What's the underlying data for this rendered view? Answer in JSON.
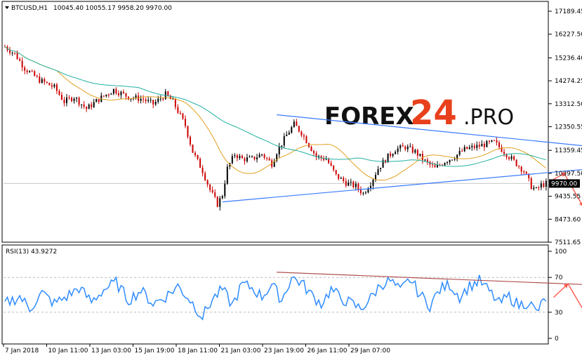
{
  "header": {
    "symbol": "BTCUSD,H1",
    "ohlc": "10045.40 10055.17 9958.20 9970.00",
    "rsi_label": "RSI(13) 43.9272"
  },
  "logo": {
    "forex": "FOREX",
    "num": "24",
    "pro": ".PRO"
  },
  "colors": {
    "bull": "#000000",
    "bear": "#cc0000",
    "ma_fast": "#e0a020",
    "ma_slow": "#20b0a0",
    "trend": "#3a7bff",
    "arrow": "#ff5a50",
    "rsi": "#2f8cff",
    "rsi_trend": "#b05050"
  },
  "chart_data": [
    {
      "type": "line",
      "name": "price",
      "y_ticks": [
        "17189.45",
        "16227.50",
        "15236.40",
        "14274.25",
        "13312.50",
        "12350.55",
        "11359.45",
        "10397.50",
        "9435.55",
        "8473.60",
        "7511.65"
      ],
      "ylim": [
        7511.65,
        17189.45
      ],
      "current_price": "9970.00",
      "x_ticks": [
        "7 Jan 2018",
        "10 Jan 11:00",
        "13 Jan 03:00",
        "15 Jan 19:00",
        "18 Jan 11:00",
        "21 Jan 03:00",
        "23 Jan 19:00",
        "26 Jan 11:00",
        "29 Jan 07:00"
      ],
      "anchors": [
        [
          0,
          15700
        ],
        [
          4,
          15400
        ],
        [
          8,
          14800
        ],
        [
          14,
          14300
        ],
        [
          20,
          14000
        ],
        [
          24,
          13400
        ],
        [
          28,
          13600
        ],
        [
          33,
          13100
        ],
        [
          38,
          13500
        ],
        [
          44,
          13900
        ],
        [
          50,
          13600
        ],
        [
          56,
          13500
        ],
        [
          60,
          13300
        ],
        [
          65,
          13700
        ],
        [
          68,
          13400
        ],
        [
          73,
          12400
        ],
        [
          76,
          11300
        ],
        [
          80,
          10500
        ],
        [
          83,
          9700
        ],
        [
          86,
          9100
        ],
        [
          88,
          9500
        ],
        [
          90,
          10600
        ],
        [
          93,
          11200
        ],
        [
          96,
          11000
        ],
        [
          100,
          11000
        ],
        [
          104,
          11200
        ],
        [
          108,
          10800
        ],
        [
          110,
          11300
        ],
        [
          114,
          12000
        ],
        [
          117,
          12450
        ],
        [
          120,
          12100
        ],
        [
          123,
          11600
        ],
        [
          126,
          11100
        ],
        [
          130,
          11000
        ],
        [
          134,
          10300
        ],
        [
          138,
          10000
        ],
        [
          142,
          9850
        ],
        [
          145,
          9550
        ],
        [
          148,
          10000
        ],
        [
          151,
          10600
        ],
        [
          155,
          11100
        ],
        [
          158,
          11400
        ],
        [
          162,
          11500
        ],
        [
          166,
          11300
        ],
        [
          170,
          10900
        ],
        [
          174,
          10600
        ],
        [
          178,
          10900
        ],
        [
          182,
          11100
        ],
        [
          186,
          11400
        ],
        [
          190,
          11500
        ],
        [
          194,
          11600
        ],
        [
          198,
          11700
        ],
        [
          201,
          11400
        ],
        [
          204,
          11100
        ],
        [
          207,
          10800
        ],
        [
          210,
          10500
        ],
        [
          213,
          9850
        ],
        [
          215,
          9700
        ],
        [
          217,
          9900
        ],
        [
          219,
          9970
        ]
      ],
      "trend_upper": [
        [
          110,
          12850
        ],
        [
          258,
          11300
        ]
      ],
      "trend_lower": [
        [
          88,
          9200
        ],
        [
          262,
          10820
        ]
      ],
      "arrow_up": [
        [
          222,
          10150
        ],
        [
          227,
          10420
        ]
      ],
      "arrow_down": [
        [
          226,
          10450
        ],
        [
          234,
          9000
        ]
      ]
    },
    {
      "type": "line",
      "name": "RSI",
      "y_ticks": [
        "100",
        "70",
        "30",
        "0"
      ],
      "ylim": [
        0,
        100
      ],
      "levels": [
        70,
        30
      ],
      "anchors": [
        [
          0,
          40
        ],
        [
          6,
          48
        ],
        [
          10,
          34
        ],
        [
          15,
          52
        ],
        [
          20,
          40
        ],
        [
          25,
          48
        ],
        [
          30,
          58
        ],
        [
          35,
          42
        ],
        [
          40,
          56
        ],
        [
          45,
          64
        ],
        [
          50,
          44
        ],
        [
          55,
          55
        ],
        [
          60,
          40
        ],
        [
          65,
          48
        ],
        [
          70,
          60
        ],
        [
          75,
          44
        ],
        [
          80,
          25
        ],
        [
          84,
          45
        ],
        [
          88,
          56
        ],
        [
          92,
          38
        ],
        [
          96,
          62
        ],
        [
          100,
          58
        ],
        [
          104,
          48
        ],
        [
          108,
          62
        ],
        [
          112,
          44
        ],
        [
          116,
          70
        ],
        [
          120,
          64
        ],
        [
          124,
          50
        ],
        [
          128,
          40
        ],
        [
          132,
          56
        ],
        [
          136,
          46
        ],
        [
          140,
          40
        ],
        [
          144,
          34
        ],
        [
          148,
          46
        ],
        [
          152,
          62
        ],
        [
          156,
          66
        ],
        [
          160,
          54
        ],
        [
          164,
          68
        ],
        [
          168,
          50
        ],
        [
          172,
          38
        ],
        [
          176,
          56
        ],
        [
          180,
          62
        ],
        [
          184,
          48
        ],
        [
          188,
          60
        ],
        [
          192,
          66
        ],
        [
          196,
          54
        ],
        [
          200,
          40
        ],
        [
          204,
          48
        ],
        [
          208,
          38
        ],
        [
          212,
          42
        ],
        [
          215,
          30
        ],
        [
          217,
          38
        ],
        [
          219,
          46
        ],
        [
          220,
          48
        ]
      ],
      "trend": [
        [
          110,
          76
        ],
        [
          268,
          58
        ]
      ],
      "arrow_up": [
        [
          222,
          47
        ],
        [
          228,
          63
        ]
      ],
      "arrow_down": [
        [
          228,
          62
        ],
        [
          235,
          28
        ]
      ]
    }
  ]
}
